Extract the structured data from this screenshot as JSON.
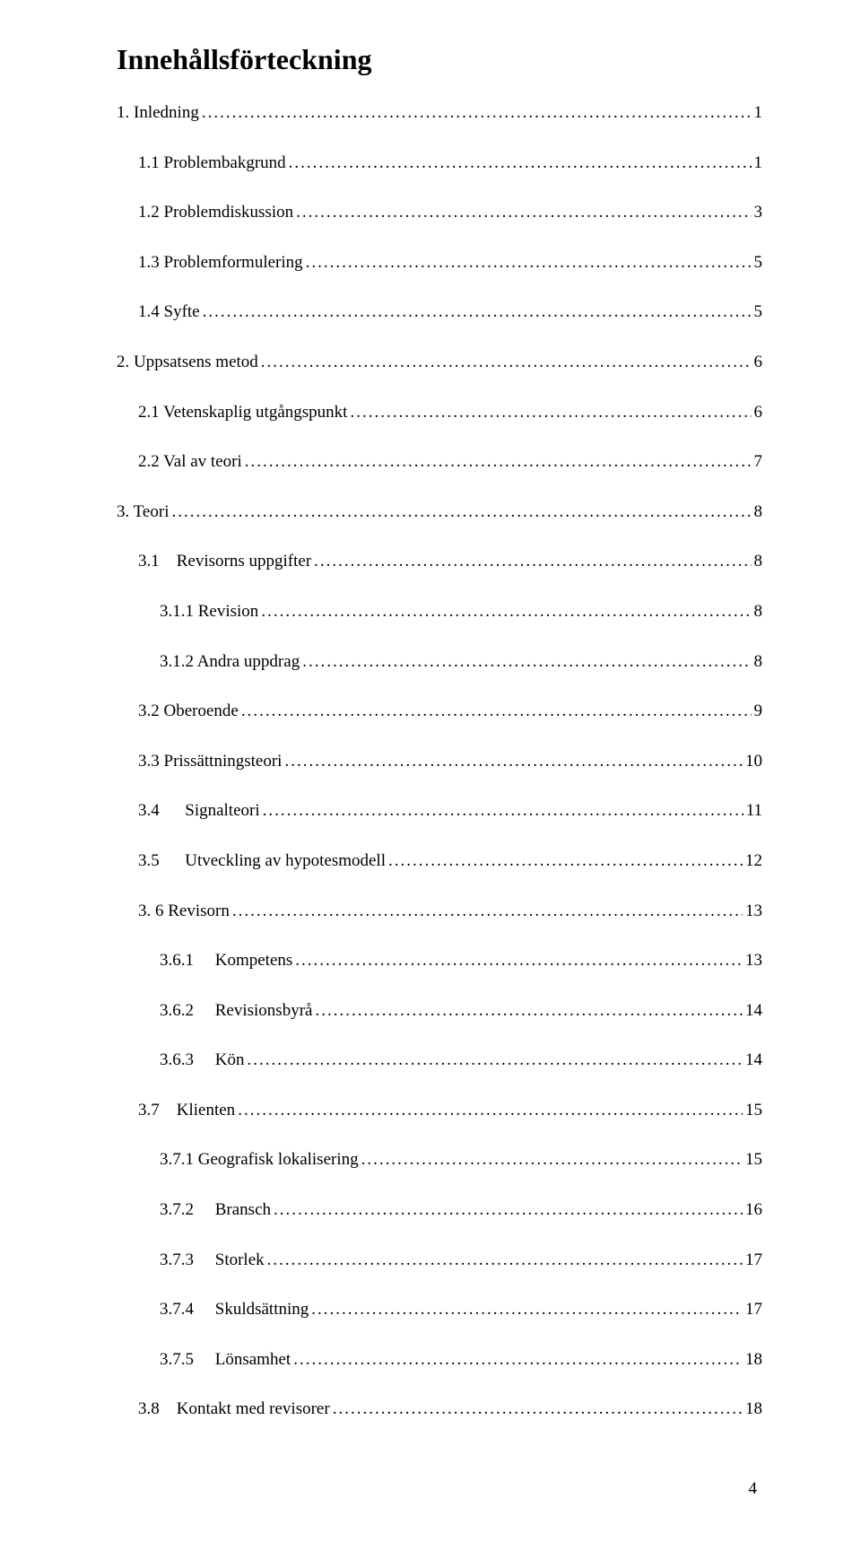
{
  "heading": "Innehållsförteckning",
  "footer_page": "4",
  "entries": [
    {
      "label": "1. Inledning",
      "page": "1",
      "indent": 0
    },
    {
      "label": "1.1 Problembakgrund",
      "page": "1",
      "indent": 1
    },
    {
      "label": "1.2 Problemdiskussion",
      "page": "3",
      "indent": 1
    },
    {
      "label": "1.3 Problemformulering",
      "page": "5",
      "indent": 1
    },
    {
      "label": "1.4 Syfte",
      "page": "5",
      "indent": 1
    },
    {
      "label": "2. Uppsatsens metod",
      "page": "6",
      "indent": 0
    },
    {
      "label": "2.1 Vetenskaplig utgångspunkt",
      "page": "6",
      "indent": 1
    },
    {
      "label": "2.2 Val av teori",
      "page": "7",
      "indent": 1
    },
    {
      "label": "3. Teori",
      "page": "8",
      "indent": 0
    },
    {
      "label": "3.1    Revisorns uppgifter",
      "page": "8",
      "indent": 1
    },
    {
      "label": "3.1.1 Revision",
      "page": "8",
      "indent": 2
    },
    {
      "label": "3.1.2 Andra uppdrag",
      "page": "8",
      "indent": 2
    },
    {
      "label": "3.2 Oberoende",
      "page": "9",
      "indent": 1
    },
    {
      "label": "3.3 Prissättningsteori",
      "page": "10",
      "indent": 1
    },
    {
      "label": "3.4      Signalteori",
      "page": "11",
      "indent": 1
    },
    {
      "label": "3.5      Utveckling av hypotesmodell",
      "page": "12",
      "indent": 1
    },
    {
      "label": "3. 6 Revisorn",
      "page": "13",
      "indent": 1
    },
    {
      "label": "3.6.1     Kompetens",
      "page": "13",
      "indent": 2
    },
    {
      "label": "3.6.2     Revisionsbyrå",
      "page": "14",
      "indent": 2
    },
    {
      "label": "3.6.3     Kön",
      "page": "14",
      "indent": 2
    },
    {
      "label": "3.7    Klienten",
      "page": "15",
      "indent": 1
    },
    {
      "label": "3.7.1 Geografisk lokalisering",
      "page": "15",
      "indent": 2
    },
    {
      "label": "3.7.2     Bransch",
      "page": "16",
      "indent": 2
    },
    {
      "label": "3.7.3     Storlek",
      "page": "17",
      "indent": 2
    },
    {
      "label": "3.7.4     Skuldsättning",
      "page": "17",
      "indent": 2
    },
    {
      "label": "3.7.5     Lönsamhet",
      "page": "18",
      "indent": 2
    },
    {
      "label": "3.8    Kontakt med revisorer",
      "page": "18",
      "indent": 1
    }
  ]
}
